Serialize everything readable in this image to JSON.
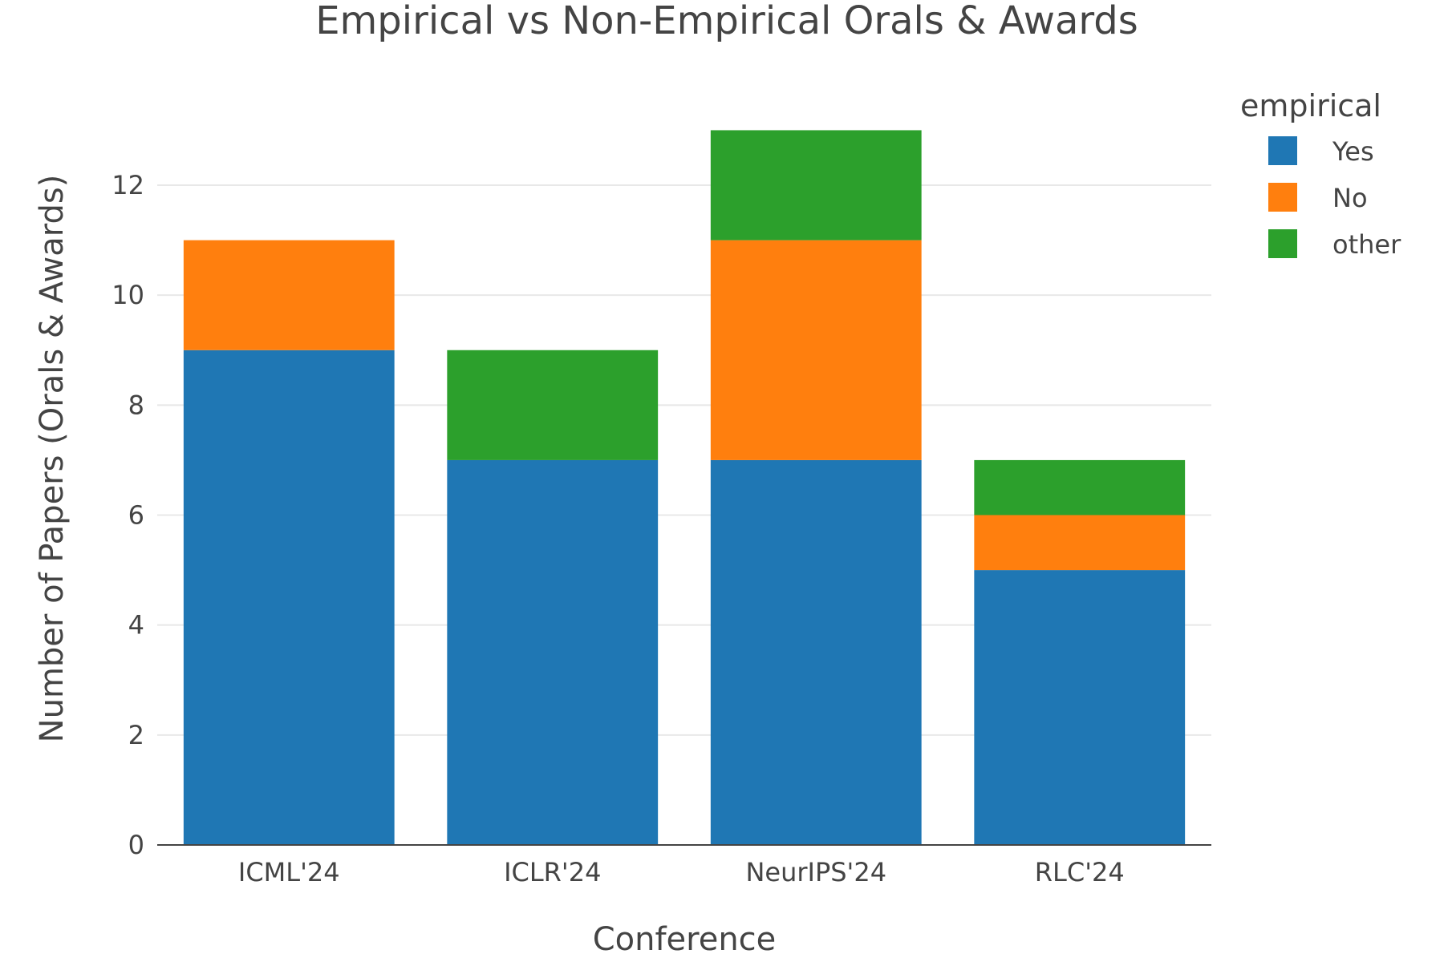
{
  "chart_data": {
    "type": "bar",
    "stacked": true,
    "title": "Empirical vs Non-Empirical Orals & Awards",
    "xlabel": "Conference",
    "ylabel": "Number of Papers (Orals & Awards)",
    "categories": [
      "ICML'24",
      "ICLR'24",
      "NeurIPS'24",
      "RLC'24"
    ],
    "ylim": [
      0,
      13.4
    ],
    "yticks": [
      0,
      2,
      4,
      6,
      8,
      10,
      12
    ],
    "ytick_labels": [
      "0",
      "2",
      "4",
      "6",
      "8",
      "10",
      "12"
    ],
    "grid": true,
    "legend": {
      "title": "empirical",
      "position": "top-right"
    },
    "series": [
      {
        "name": "Yes",
        "color": "#1f77b4",
        "values": [
          9,
          7,
          7,
          5
        ]
      },
      {
        "name": "No",
        "color": "#ff7f0e",
        "values": [
          2,
          0,
          4,
          1
        ]
      },
      {
        "name": "other",
        "color": "#2ca02c",
        "values": [
          0,
          2,
          2,
          1
        ]
      }
    ]
  }
}
